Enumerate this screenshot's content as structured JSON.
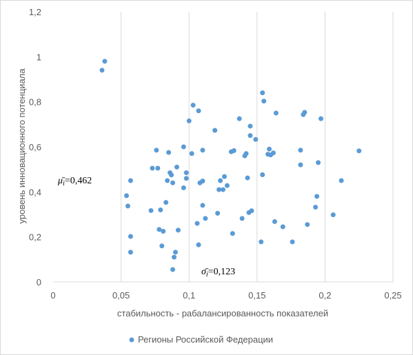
{
  "chart_data": {
    "type": "scatter",
    "xlabel": "стабильность - рабалансированность показателей",
    "ylabel": "уровень инновационного потенциала",
    "xlim": [
      0,
      0.25
    ],
    "ylim": [
      0,
      1.2
    ],
    "x_ticks": [
      "0",
      "0,05",
      "0,1",
      "0,15",
      "0,2",
      "0,25"
    ],
    "y_ticks": [
      "0",
      "0,2",
      "0,4",
      "0,6",
      "0,8",
      "1",
      "1,2"
    ],
    "x_tick_values": [
      0,
      0.05,
      0.1,
      0.15,
      0.2,
      0.25
    ],
    "y_tick_values": [
      0,
      0.2,
      0.4,
      0.6,
      0.8,
      1.0,
      1.2
    ],
    "grid": "vertical",
    "legend_position": "bottom",
    "marker_color": "#5b9bd5",
    "series": [
      {
        "name": "Регионы Российской Федерации",
        "points": [
          [
            0.036,
            0.94
          ],
          [
            0.038,
            0.98
          ],
          [
            0.054,
            0.383
          ],
          [
            0.055,
            0.337
          ],
          [
            0.057,
            0.45
          ],
          [
            0.057,
            0.202
          ],
          [
            0.057,
            0.132
          ],
          [
            0.072,
            0.317
          ],
          [
            0.073,
            0.505
          ],
          [
            0.076,
            0.585
          ],
          [
            0.077,
            0.505
          ],
          [
            0.078,
            0.233
          ],
          [
            0.079,
            0.32
          ],
          [
            0.08,
            0.16
          ],
          [
            0.081,
            0.225
          ],
          [
            0.083,
            0.353
          ],
          [
            0.084,
            0.45
          ],
          [
            0.085,
            0.575
          ],
          [
            0.086,
            0.485
          ],
          [
            0.087,
            0.475
          ],
          [
            0.088,
            0.055
          ],
          [
            0.088,
            0.44
          ],
          [
            0.089,
            0.11
          ],
          [
            0.09,
            0.132
          ],
          [
            0.091,
            0.51
          ],
          [
            0.092,
            0.23
          ],
          [
            0.096,
            0.6
          ],
          [
            0.096,
            0.418
          ],
          [
            0.098,
            0.46
          ],
          [
            0.098,
            0.485
          ],
          [
            0.1,
            0.715
          ],
          [
            0.102,
            0.57
          ],
          [
            0.103,
            0.785
          ],
          [
            0.106,
            0.26
          ],
          [
            0.107,
            0.165
          ],
          [
            0.107,
            0.76
          ],
          [
            0.108,
            0.44
          ],
          [
            0.11,
            0.585
          ],
          [
            0.11,
            0.448
          ],
          [
            0.11,
            0.34
          ],
          [
            0.112,
            0.282
          ],
          [
            0.119,
            0.673
          ],
          [
            0.121,
            0.305
          ],
          [
            0.122,
            0.41
          ],
          [
            0.123,
            0.45
          ],
          [
            0.125,
            0.41
          ],
          [
            0.126,
            0.468
          ],
          [
            0.128,
            0.428
          ],
          [
            0.131,
            0.578
          ],
          [
            0.132,
            0.215
          ],
          [
            0.133,
            0.583
          ],
          [
            0.137,
            0.725
          ],
          [
            0.139,
            0.282
          ],
          [
            0.141,
            0.56
          ],
          [
            0.142,
            0.57
          ],
          [
            0.143,
            0.462
          ],
          [
            0.144,
            0.308
          ],
          [
            0.145,
            0.65
          ],
          [
            0.145,
            0.692
          ],
          [
            0.146,
            0.316
          ],
          [
            0.149,
            0.633
          ],
          [
            0.153,
            0.178
          ],
          [
            0.154,
            0.84
          ],
          [
            0.154,
            0.476
          ],
          [
            0.155,
            0.803
          ],
          [
            0.158,
            0.567
          ],
          [
            0.159,
            0.59
          ],
          [
            0.16,
            0.564
          ],
          [
            0.162,
            0.573
          ],
          [
            0.163,
            0.268
          ],
          [
            0.164,
            0.75
          ],
          [
            0.169,
            0.245
          ],
          [
            0.176,
            0.178
          ],
          [
            0.182,
            0.585
          ],
          [
            0.182,
            0.52
          ],
          [
            0.184,
            0.743
          ],
          [
            0.185,
            0.753
          ],
          [
            0.187,
            0.255
          ],
          [
            0.193,
            0.332
          ],
          [
            0.194,
            0.38
          ],
          [
            0.195,
            0.53
          ],
          [
            0.197,
            0.725
          ],
          [
            0.206,
            0.298
          ],
          [
            0.212,
            0.45
          ],
          [
            0.225,
            0.582
          ]
        ]
      }
    ]
  },
  "annotations": {
    "mean": {
      "symbol": "μ̄",
      "sub": "i",
      "value": "=0,462"
    },
    "std": {
      "symbol": "σ̄",
      "sub": "i",
      "value": "=0,123"
    }
  }
}
